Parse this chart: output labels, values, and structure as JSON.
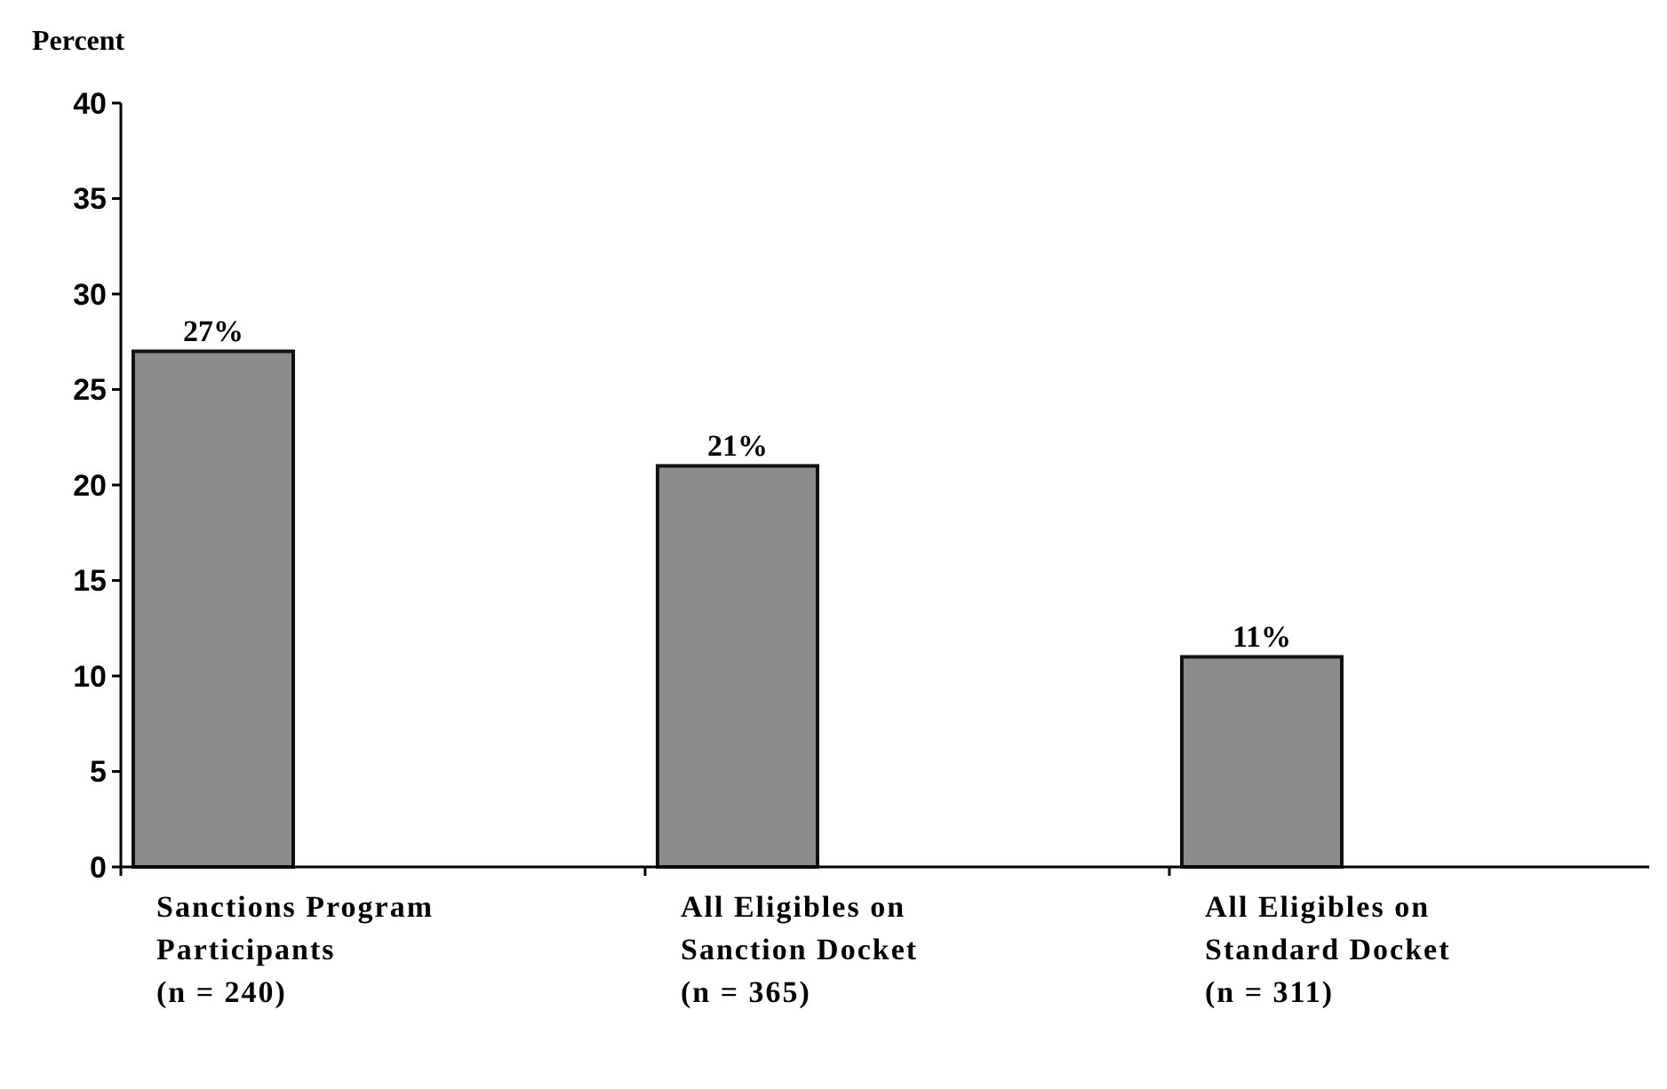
{
  "chart_data": {
    "type": "bar",
    "ylabel": "Percent",
    "categories": [
      "Sanctions Program\nParticipants\n(n = 240)",
      "All Eligibles on\nSanction Docket\n(n = 365)",
      "All Eligibles on\nStandard Docket\n(n = 311)"
    ],
    "values": [
      27,
      21,
      11
    ],
    "value_labels": [
      "27%",
      "21%",
      "11%"
    ],
    "color": "#8c8c8c",
    "ylim": [
      0,
      40
    ],
    "yticks": [
      0,
      5,
      10,
      15,
      20,
      25,
      30,
      35,
      40
    ]
  }
}
